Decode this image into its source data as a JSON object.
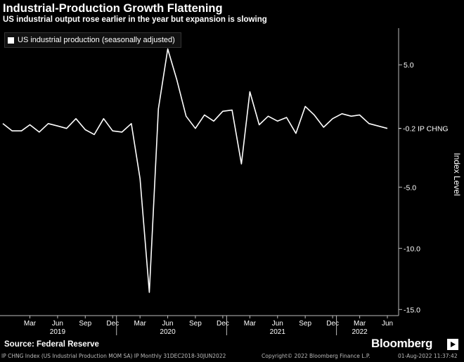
{
  "header": {
    "title": "Industrial-Production Growth Flattening",
    "subtitle": "US industrial output rose earlier in the year but expansion is slowing"
  },
  "footer": {
    "source": "Source: Federal Reserve",
    "brand": "Bloomberg",
    "meta": "IP CHNG Index (US Industrial Production MOM SA) IP  Monthly 31DEC2018-30JUN2022",
    "copyright": "Copyright© 2022 Bloomberg Finance L.P.",
    "timestamp": "01-Aug-2022 11:37:42"
  },
  "chart_data": {
    "type": "line",
    "title": "Industrial-Production Growth Flattening",
    "subtitle": "US industrial output rose earlier in the year but expansion is slowing",
    "ylabel": "Index Level",
    "ylim": [
      -15.5,
      8
    ],
    "yticks": [
      5.0,
      -5.0,
      -10.0,
      -15.0
    ],
    "ytick_labels": [
      "5.0",
      "-5.0",
      "-10.0",
      "-15.0"
    ],
    "grid": false,
    "legend": {
      "position": "top-left",
      "entries": [
        "US industrial production (seasonally adjusted)"
      ]
    },
    "last_value_label": "-0.2 IP CHNG",
    "x_month_ticks": [
      {
        "date": "2019-03",
        "label": "Mar"
      },
      {
        "date": "2019-06",
        "label": "Jun"
      },
      {
        "date": "2019-09",
        "label": "Sep"
      },
      {
        "date": "2019-12",
        "label": "Dec"
      },
      {
        "date": "2020-03",
        "label": "Mar"
      },
      {
        "date": "2020-06",
        "label": "Jun"
      },
      {
        "date": "2020-09",
        "label": "Sep"
      },
      {
        "date": "2020-12",
        "label": "Dec"
      },
      {
        "date": "2021-03",
        "label": "Mar"
      },
      {
        "date": "2021-06",
        "label": "Jun"
      },
      {
        "date": "2021-09",
        "label": "Sep"
      },
      {
        "date": "2021-12",
        "label": "Dec"
      },
      {
        "date": "2022-03",
        "label": "Mar"
      },
      {
        "date": "2022-06",
        "label": "Jun"
      }
    ],
    "x_year_labels": [
      {
        "date": "2019-06",
        "label": "2019"
      },
      {
        "date": "2020-06",
        "label": "2020"
      },
      {
        "date": "2021-06",
        "label": "2021"
      },
      {
        "date": "2022-03",
        "label": "2022"
      }
    ],
    "x_year_dividers": [
      "2019-12",
      "2020-12",
      "2021-12"
    ],
    "series": [
      {
        "name": "US industrial production (seasonally adjusted)",
        "color": "#ffffff",
        "x": [
          "2018-12",
          "2019-01",
          "2019-02",
          "2019-03",
          "2019-04",
          "2019-05",
          "2019-06",
          "2019-07",
          "2019-08",
          "2019-09",
          "2019-10",
          "2019-11",
          "2019-12",
          "2020-01",
          "2020-02",
          "2020-03",
          "2020-04",
          "2020-05",
          "2020-06",
          "2020-07",
          "2020-08",
          "2020-09",
          "2020-10",
          "2020-11",
          "2020-12",
          "2021-01",
          "2021-02",
          "2021-03",
          "2021-04",
          "2021-05",
          "2021-06",
          "2021-07",
          "2021-08",
          "2021-09",
          "2021-10",
          "2021-11",
          "2021-12",
          "2022-01",
          "2022-02",
          "2022-03",
          "2022-04",
          "2022-05",
          "2022-06"
        ],
        "values": [
          0.2,
          -0.4,
          -0.4,
          0.1,
          -0.5,
          0.2,
          0.0,
          -0.2,
          0.6,
          -0.3,
          -0.7,
          0.6,
          -0.4,
          -0.5,
          0.2,
          -4.3,
          -13.6,
          1.4,
          6.3,
          3.8,
          0.8,
          -0.2,
          0.9,
          0.4,
          1.2,
          1.3,
          -3.1,
          2.8,
          0.1,
          0.8,
          0.4,
          0.7,
          -0.6,
          1.6,
          0.9,
          -0.1,
          0.6,
          1.0,
          0.8,
          0.9,
          0.2,
          0.0,
          -0.2
        ]
      }
    ]
  }
}
